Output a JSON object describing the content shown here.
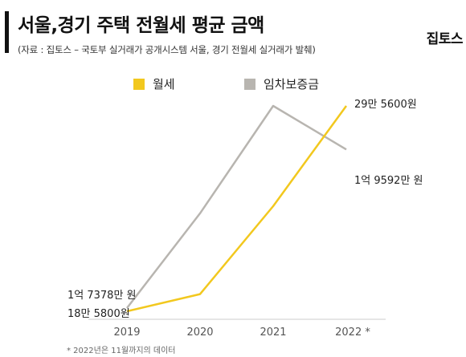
{
  "header": {
    "title": "서울,경기 주택 전월세 평균 금액",
    "source": "(자료 : 집토스 – 국토부 실거래가 공개시스템 서울, 경기 전월세 실거래가 발췌)",
    "brand": "집토스"
  },
  "footnote": "* 2022년은 11월까지의 데이터",
  "chart_data": {
    "type": "line",
    "title": "서울,경기 주택 전월세 평균 금액",
    "categories": [
      "2019",
      "2020",
      "2021",
      "2022 *"
    ],
    "legend_position": "top",
    "grid": false,
    "y_axis_shown": false,
    "series": [
      {
        "name": "월세",
        "color": "#f2c81e",
        "unit": "원",
        "values": [
          185800,
          195000,
          242000,
          295600
        ],
        "labels": [
          "18만 5800원",
          "",
          "",
          "29만 5600원"
        ]
      },
      {
        "name": "임차보증금",
        "color": "#b8b5b0",
        "unit": "원",
        "values": [
          173780000,
          187000000,
          202000000,
          195920000
        ],
        "labels": [
          "1억 7378만 원",
          "",
          "",
          "1억 9592만 원"
        ]
      }
    ]
  }
}
